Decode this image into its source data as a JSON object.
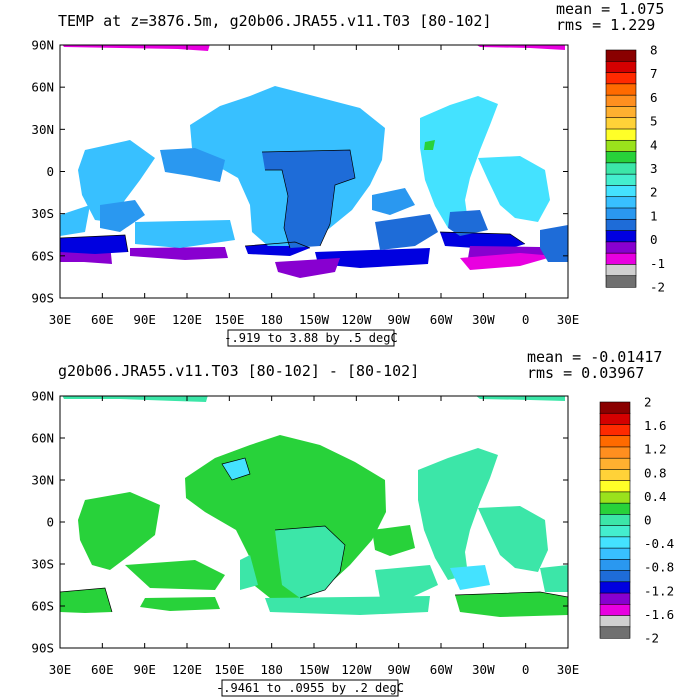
{
  "panels": [
    {
      "title": "TEMP at z=3876.5m, g20b06.JRA55.v11.T03 [80-102]",
      "mean_label": "mean = 1.075",
      "rms_label": "rms = 1.229",
      "contour_info": "-.919 to 3.88 by .5 degC",
      "colorbar": {
        "labels": [
          "8",
          "7",
          "6",
          "5",
          "4",
          "3",
          "2",
          "1",
          "0",
          "-1",
          "-2"
        ],
        "colors": [
          "#8a0000",
          "#d40000",
          "#ff2a00",
          "#ff6a00",
          "#ff8f1f",
          "#ffb030",
          "#ffd238",
          "#ffff28",
          "#9ae21c",
          "#28d23a",
          "#3ce6a8",
          "#44eece",
          "#44e2ff",
          "#38c0ff",
          "#2a98f0",
          "#1e6cd8",
          "#0000e0",
          "#8800d0",
          "#e800e0",
          "#d0d0d0",
          "#707070"
        ],
        "vmin": -2,
        "vmax": 8,
        "step": 0.5
      },
      "regions": [
        {
          "color": "#38c0ff",
          "value": 1.25
        },
        {
          "color": "#44e2ff",
          "value": 1.75
        },
        {
          "color": "#2a98f0",
          "value": 0.75
        },
        {
          "color": "#1e6cd8",
          "value": 0.25
        },
        {
          "color": "#0000e0",
          "value": -0.25
        },
        {
          "color": "#8800d0",
          "value": -0.75
        },
        {
          "color": "#e800e0",
          "value": -1.25
        },
        {
          "color": "#28d23a",
          "value": 3.25
        }
      ]
    },
    {
      "title": "g20b06.JRA55.v11.T03 [80-102] -  [80-102]",
      "mean_label": "mean = -0.01417",
      "rms_label": "rms = 0.03967",
      "contour_info": "-.9461 to .0955 by .2 degC",
      "colorbar": {
        "labels": [
          "2",
          "1.6",
          "1.2",
          "0.8",
          "0.4",
          "0",
          "-0.4",
          "-0.8",
          "-1.2",
          "-1.6",
          "-2"
        ],
        "colors": [
          "#8a0000",
          "#d40000",
          "#ff2a00",
          "#ff6a00",
          "#ff8f1f",
          "#ffb030",
          "#ffd238",
          "#ffff28",
          "#9ae21c",
          "#28d23a",
          "#3ce6a8",
          "#44eece",
          "#44e2ff",
          "#38c0ff",
          "#2a98f0",
          "#1e6cd8",
          "#0000e0",
          "#8800d0",
          "#e800e0",
          "#d0d0d0",
          "#707070"
        ],
        "vmin": -2,
        "vmax": 2,
        "step": 0.2
      },
      "regions": [
        {
          "color": "#28d23a",
          "value": 0.1
        },
        {
          "color": "#3ce6a8",
          "value": -0.1
        },
        {
          "color": "#44e2ff",
          "value": -0.3
        }
      ]
    }
  ],
  "axes": {
    "x_ticks": [
      "30E",
      "60E",
      "90E",
      "120E",
      "150E",
      "180",
      "150W",
      "120W",
      "90W",
      "60W",
      "30W",
      "0",
      "30E"
    ],
    "y_ticks": [
      "90N",
      "60N",
      "30N",
      "0",
      "30S",
      "60S",
      "90S"
    ],
    "lon_range": [
      30,
      390
    ],
    "lat_range": [
      -90,
      90
    ]
  }
}
